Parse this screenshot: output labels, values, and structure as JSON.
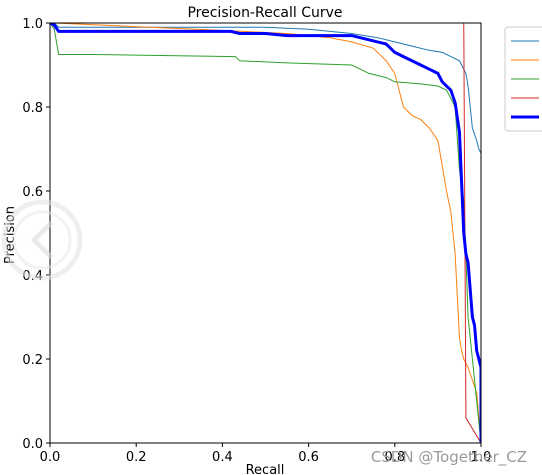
{
  "chart_data": {
    "type": "line",
    "title": "Precision-Recall Curve",
    "xlabel": "Recall",
    "ylabel": "Precision",
    "xlim": [
      0.0,
      1.0
    ],
    "ylim": [
      0.0,
      1.0
    ],
    "xticks": [
      "0.0",
      "0.2",
      "0.4",
      "0.6",
      "0.8",
      "1.0"
    ],
    "yticks": [
      "0.0",
      "0.2",
      "0.4",
      "0.6",
      "0.8",
      "1.0"
    ],
    "grid": false,
    "legend_position": "outside-top-right",
    "series": [
      {
        "color": "#1f77b4",
        "width": 1,
        "points": [
          [
            0,
            1.0
          ],
          [
            0.01,
            1.0
          ],
          [
            0.02,
            0.99
          ],
          [
            0.5,
            0.99
          ],
          [
            0.6,
            0.985
          ],
          [
            0.7,
            0.975
          ],
          [
            0.76,
            0.965
          ],
          [
            0.8,
            0.955
          ],
          [
            0.84,
            0.945
          ],
          [
            0.88,
            0.935
          ],
          [
            0.91,
            0.93
          ],
          [
            0.93,
            0.92
          ],
          [
            0.95,
            0.91
          ],
          [
            0.965,
            0.88
          ],
          [
            0.97,
            0.85
          ],
          [
            0.975,
            0.8
          ],
          [
            0.98,
            0.75
          ],
          [
            0.99,
            0.72
          ],
          [
            0.995,
            0.7
          ],
          [
            1.0,
            0.69
          ],
          [
            1.0,
            0.0
          ]
        ]
      },
      {
        "color": "#ff7f0e",
        "width": 1,
        "points": [
          [
            0,
            1.0
          ],
          [
            0.01,
            1.0
          ],
          [
            0.45,
            0.98
          ],
          [
            0.55,
            0.975
          ],
          [
            0.65,
            0.965
          ],
          [
            0.7,
            0.955
          ],
          [
            0.75,
            0.94
          ],
          [
            0.78,
            0.91
          ],
          [
            0.8,
            0.88
          ],
          [
            0.82,
            0.8
          ],
          [
            0.84,
            0.78
          ],
          [
            0.86,
            0.77
          ],
          [
            0.88,
            0.75
          ],
          [
            0.9,
            0.72
          ],
          [
            0.91,
            0.66
          ],
          [
            0.92,
            0.6
          ],
          [
            0.93,
            0.55
          ],
          [
            0.935,
            0.5
          ],
          [
            0.94,
            0.45
          ],
          [
            0.945,
            0.35
          ],
          [
            0.95,
            0.25
          ],
          [
            0.955,
            0.22
          ],
          [
            0.96,
            0.2
          ],
          [
            0.97,
            0.18
          ],
          [
            0.98,
            0.15
          ],
          [
            0.99,
            0.12
          ],
          [
            1.0,
            0.0
          ]
        ]
      },
      {
        "color": "#2ca02c",
        "width": 1,
        "points": [
          [
            0,
            1.0
          ],
          [
            0.01,
            0.985
          ],
          [
            0.02,
            0.925
          ],
          [
            0.1,
            0.925
          ],
          [
            0.43,
            0.92
          ],
          [
            0.44,
            0.91
          ],
          [
            0.55,
            0.905
          ],
          [
            0.7,
            0.9
          ],
          [
            0.72,
            0.89
          ],
          [
            0.74,
            0.88
          ],
          [
            0.76,
            0.875
          ],
          [
            0.78,
            0.87
          ],
          [
            0.8,
            0.86
          ],
          [
            0.86,
            0.855
          ],
          [
            0.9,
            0.85
          ],
          [
            0.92,
            0.84
          ],
          [
            0.94,
            0.8
          ],
          [
            0.95,
            0.65
          ],
          [
            0.96,
            0.58
          ],
          [
            0.965,
            0.45
          ],
          [
            0.97,
            0.3
          ],
          [
            0.975,
            0.25
          ],
          [
            0.98,
            0.2
          ],
          [
            1.0,
            0.0
          ]
        ]
      },
      {
        "color": "#d62728",
        "width": 1,
        "points": [
          [
            0.0,
            1.0
          ],
          [
            0.96,
            1.0
          ],
          [
            0.965,
            0.06
          ],
          [
            1.0,
            0.0
          ]
        ]
      },
      {
        "color": "#0000ff",
        "width": 3,
        "points": [
          [
            0,
            1.0
          ],
          [
            0.01,
            0.995
          ],
          [
            0.02,
            0.98
          ],
          [
            0.1,
            0.98
          ],
          [
            0.3,
            0.98
          ],
          [
            0.42,
            0.98
          ],
          [
            0.44,
            0.975
          ],
          [
            0.5,
            0.975
          ],
          [
            0.55,
            0.97
          ],
          [
            0.6,
            0.97
          ],
          [
            0.7,
            0.97
          ],
          [
            0.72,
            0.965
          ],
          [
            0.74,
            0.96
          ],
          [
            0.76,
            0.955
          ],
          [
            0.78,
            0.95
          ],
          [
            0.8,
            0.93
          ],
          [
            0.82,
            0.92
          ],
          [
            0.86,
            0.9
          ],
          [
            0.88,
            0.89
          ],
          [
            0.9,
            0.88
          ],
          [
            0.91,
            0.86
          ],
          [
            0.93,
            0.84
          ],
          [
            0.94,
            0.81
          ],
          [
            0.95,
            0.74
          ],
          [
            0.955,
            0.62
          ],
          [
            0.96,
            0.5
          ],
          [
            0.965,
            0.45
          ],
          [
            0.97,
            0.43
          ],
          [
            0.98,
            0.3
          ],
          [
            0.985,
            0.28
          ],
          [
            0.99,
            0.22
          ],
          [
            0.995,
            0.2
          ],
          [
            1.0,
            0.18
          ],
          [
            1.0,
            0.0
          ]
        ]
      }
    ]
  },
  "watermark": "CSDN @Together_CZ"
}
